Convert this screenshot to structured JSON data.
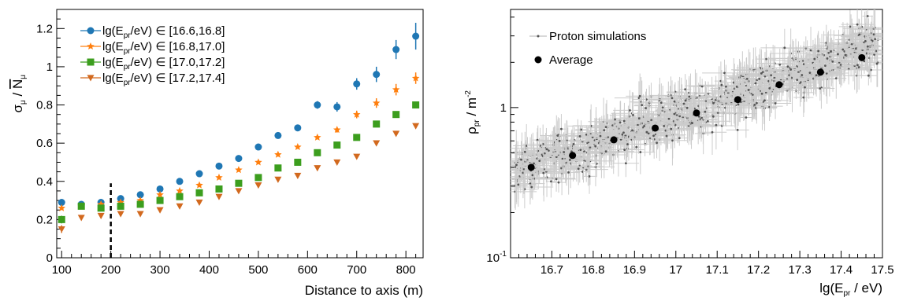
{
  "chart_data": [
    {
      "type": "scatter",
      "xlabel": "Distance to axis (m)",
      "ylabel": {
        "main": "σ",
        "main_sub": "μ",
        "sep": " / ",
        "denom": "N",
        "denom_sub": "μ"
      },
      "xlim": [
        90,
        835
      ],
      "ylim": [
        0,
        1.3
      ],
      "x_ticks": [
        100,
        200,
        300,
        400,
        500,
        600,
        700,
        800
      ],
      "y_ticks": [
        0,
        0.2,
        0.4,
        0.6,
        0.8,
        1,
        1.2
      ],
      "y_tick_labels": [
        "0",
        "0.2",
        "0.4",
        "0.6",
        "0.8",
        "1",
        "1.2"
      ],
      "annotation_vline_x": 200,
      "legend_position": "top-left",
      "x": [
        100,
        140,
        180,
        220,
        260,
        300,
        340,
        380,
        420,
        460,
        500,
        540,
        580,
        620,
        660,
        700,
        740,
        780,
        820
      ],
      "series": [
        {
          "name": "lg(E_pr/eV) ∈ [16.6,16.8]",
          "legend": {
            "pre": "lg(E",
            "sub": "pr",
            "post": "/eV) ∈ [16.6,16.8]"
          },
          "color": "#1f77b4",
          "marker": "circle",
          "values": [
            0.29,
            0.28,
            0.29,
            0.31,
            0.33,
            0.36,
            0.4,
            0.44,
            0.48,
            0.52,
            0.58,
            0.64,
            0.68,
            0.8,
            0.79,
            0.91,
            0.96,
            1.09,
            1.16
          ],
          "errors": [
            0.015,
            0.012,
            0.01,
            0.01,
            0.01,
            0.01,
            0.01,
            0.01,
            0.01,
            0.01,
            0.01,
            0.01,
            0.01,
            0.02,
            0.025,
            0.03,
            0.04,
            0.05,
            0.07
          ]
        },
        {
          "name": "lg(E_pr/eV) ∈ [16.8,17.0]",
          "legend": {
            "pre": "lg(E",
            "sub": "pr",
            "post": "/eV) ∈ [16.8,17.0]"
          },
          "color": "#ff7f0e",
          "marker": "star",
          "values": [
            0.26,
            0.27,
            0.28,
            0.29,
            0.3,
            0.33,
            0.35,
            0.38,
            0.42,
            0.46,
            0.5,
            0.54,
            0.58,
            0.63,
            0.67,
            0.75,
            0.81,
            0.88,
            0.94
          ],
          "errors": [
            0.01,
            0.01,
            0.01,
            0.01,
            0.01,
            0.01,
            0.01,
            0.01,
            0.01,
            0.01,
            0.01,
            0.01,
            0.01,
            0.01,
            0.015,
            0.02,
            0.025,
            0.03,
            0.03
          ]
        },
        {
          "name": "lg(E_pr/eV) ∈ [17.0,17.2]",
          "legend": {
            "pre": "lg(E",
            "sub": "pr",
            "post": "/eV) ∈ [17.0,17.2]"
          },
          "color": "#3c9e1e",
          "marker": "square",
          "values": [
            0.2,
            0.27,
            0.26,
            0.27,
            0.28,
            0.3,
            0.32,
            0.34,
            0.36,
            0.39,
            0.42,
            0.47,
            0.5,
            0.55,
            0.59,
            0.63,
            0.7,
            0.75,
            0.8
          ],
          "errors": [
            0.02,
            0.01,
            0.01,
            0.01,
            0.01,
            0.01,
            0.01,
            0.01,
            0.01,
            0.01,
            0.01,
            0.01,
            0.01,
            0.01,
            0.01,
            0.01,
            0.01,
            0.01,
            0.01
          ]
        },
        {
          "name": "lg(E_pr/eV) ∈ [17.2,17.4]",
          "legend": {
            "pre": "lg(E",
            "sub": "pr",
            "post": "/eV) ∈ [17.2,17.4]"
          },
          "color": "#d2691e",
          "marker": "triangle-down",
          "values": [
            0.15,
            0.21,
            0.22,
            0.23,
            0.23,
            0.25,
            0.27,
            0.29,
            0.32,
            0.35,
            0.38,
            0.41,
            0.43,
            0.47,
            0.5,
            0.53,
            0.6,
            0.65,
            0.69
          ],
          "errors": [
            0.02,
            0.01,
            0.01,
            0.01,
            0.01,
            0.01,
            0.01,
            0.01,
            0.01,
            0.01,
            0.01,
            0.01,
            0.01,
            0.01,
            0.01,
            0.01,
            0.01,
            0.01,
            0.01
          ]
        }
      ]
    },
    {
      "type": "scatter",
      "xlabel": {
        "pre": "lg(E",
        "sub": "pr",
        "post": " / eV)"
      },
      "ylabel": {
        "main": "ρ",
        "sub": "pr",
        "post": " / m",
        "sup": "-2"
      },
      "xlim": [
        16.6,
        17.5
      ],
      "ylim": [
        0.1,
        4.5
      ],
      "y_scale": "log",
      "x_ticks": [
        16.7,
        16.8,
        16.9,
        17.0,
        17.1,
        17.2,
        17.3,
        17.4,
        17.5
      ],
      "x_tick_labels": [
        "16.7",
        "16.8",
        "16.9",
        "17",
        "17.1",
        "17.2",
        "17.3",
        "17.4",
        "17.5"
      ],
      "y_ticks": [
        {
          "value": 1,
          "label": "1"
        },
        {
          "value": 0.1,
          "label": "10",
          "sup": "-1"
        }
      ],
      "legend_position": "top-left",
      "series": [
        {
          "name": "Proton simulations",
          "color": "#555555",
          "error_color": "#cccccc",
          "marker": "small-dot",
          "trend": {
            "at_x": [
              16.6,
              17.5
            ],
            "log10_y": [
              -0.45,
              0.45
            ]
          }
        },
        {
          "name": "Average",
          "color": "#000000",
          "marker": "circle",
          "x": [
            16.65,
            16.75,
            16.85,
            16.95,
            17.05,
            17.15,
            17.25,
            17.35,
            17.45
          ],
          "values": [
            0.4,
            0.48,
            0.61,
            0.73,
            0.92,
            1.13,
            1.42,
            1.72,
            2.15
          ]
        }
      ]
    }
  ]
}
